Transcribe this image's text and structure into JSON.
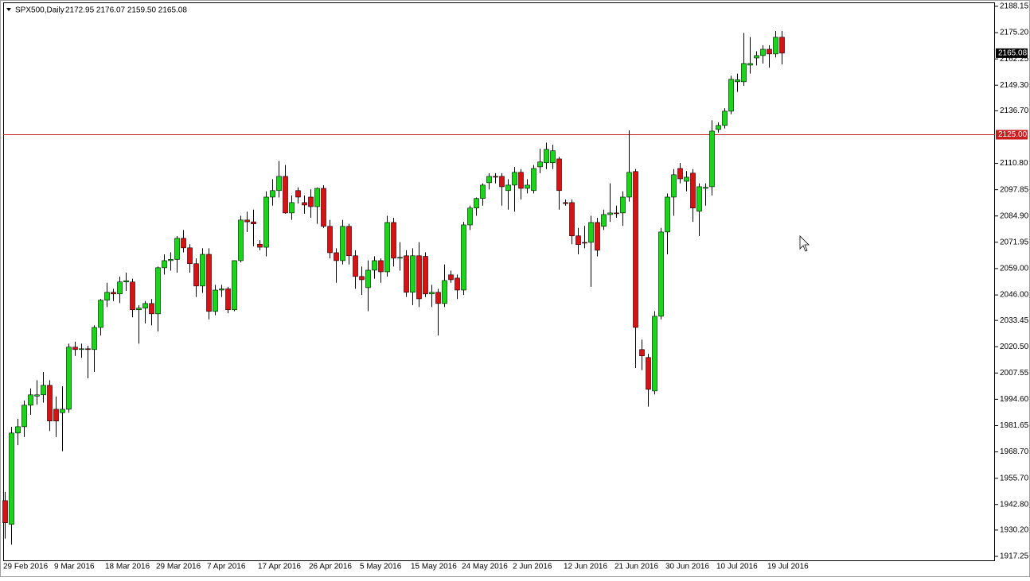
{
  "chart_data": {
    "type": "candlestick",
    "title": "SPX500,Daily",
    "ohlc_text": "2172.95 2176.07 2159.50 2165.08",
    "categories": [
      "29 Feb 2016",
      null,
      null,
      null,
      null,
      null,
      null,
      null,
      "9 Mar 2016",
      null,
      null,
      null,
      null,
      null,
      null,
      null,
      "18 Mar 2016",
      null,
      null,
      null,
      null,
      null,
      null,
      null,
      "29 Mar 2016",
      null,
      null,
      null,
      null,
      null,
      null,
      null,
      "7 Apr 2016",
      null,
      null,
      null,
      null,
      null,
      null,
      null,
      "17 Apr 2016",
      null,
      null,
      null,
      null,
      null,
      null,
      null,
      "26 Apr 2016",
      null,
      null,
      null,
      null,
      null,
      null,
      null,
      "5 May 2016",
      null,
      null,
      null,
      null,
      null,
      null,
      null,
      "15 May 2016",
      null,
      null,
      null,
      null,
      null,
      null,
      null,
      "24 May 2016",
      null,
      null,
      null,
      null,
      null,
      null,
      null,
      "2 Jun 2016",
      null,
      null,
      null,
      null,
      null,
      null,
      null,
      "12 Jun 2016",
      null,
      null,
      null,
      null,
      null,
      null,
      null,
      "21 Jun 2016",
      null,
      null,
      null,
      null,
      null,
      null,
      null,
      "30 Jun 2016",
      null,
      null,
      null,
      null,
      null,
      null,
      null,
      "10 Jul 2016",
      null,
      null,
      null,
      null,
      null,
      null,
      null,
      "19 Jul 2016",
      null,
      null
    ],
    "open": [
      1944.7,
      1933.0,
      1978.0,
      1981.1,
      1991.7,
      1996.2,
      1996.8,
      2001.5,
      1989.7,
      1988.0,
      1989.7,
      2020.3,
      2019.1,
      2019.5,
      2019.1,
      2030.0,
      2043.4,
      2047.3,
      2046.5,
      2052.4,
      2052.4,
      2038.7,
      2039.5,
      2041.8,
      2036.7,
      2059.4,
      2062.9,
      2063.5,
      2073.9,
      2069.2,
      2061.4,
      2050.4,
      2066.0,
      2037.9,
      2048.4,
      2049.0,
      2038.7,
      2062.9,
      2082.9,
      2082.0,
      2071.0,
      2069.5,
      2094.2,
      2097.4,
      2104.4,
      2086.4,
      2097.4,
      2091.5,
      2094.2,
      2089.5,
      2098.5,
      2079.8,
      2066.8,
      2062.9,
      2079.8,
      2065.3,
      2055.1,
      2049.6,
      2058.2,
      2062.9,
      2057.4,
      2081.7,
      2064.1,
      2065.3,
      2047.3,
      2065.3,
      2065.0,
      2046.5,
      2047.3,
      2041.8,
      2055.9,
      2054.3,
      2048.4,
      2080.5,
      2088.8,
      2093.5,
      2101.3,
      2104.4,
      2104.4,
      2097.4,
      2100.1,
      2106.4,
      2098.5,
      2097.4,
      2109.1,
      2111.1,
      2111.1,
      2113.0,
      2091.5,
      2091.5,
      2075.1,
      2071.9,
      2071.9,
      2081.7,
      2079.8,
      2085.6,
      2086.4,
      2086.4,
      2094.2,
      2106.8,
      2019.1,
      2015.2,
      1998.7,
      2035.5,
      2077.0,
      2094.2,
      2108.3,
      2102.0,
      2106.0,
      2087.2,
      2098.5,
      2099.3,
      2127.5,
      2129.5,
      2136.5,
      2151.0,
      2151.0,
      2159.2,
      2162.7,
      2163.9,
      2167.0,
      2164.7,
      2172.95
    ],
    "high": [
      1949.0,
      1981.0,
      1985.0,
      1994.0,
      2000.0,
      2004.0,
      2008.0,
      2004.0,
      1996.0,
      2001.0,
      2022.0,
      2023.0,
      2022.0,
      2021.0,
      2031.0,
      2044.0,
      2052.0,
      2049.0,
      2055.0,
      2057.0,
      2054.0,
      2041.0,
      2043.0,
      2044.0,
      2060.0,
      2066.0,
      2067.0,
      2075.0,
      2078.0,
      2071.0,
      2064.0,
      2069.0,
      2069.0,
      2051.0,
      2051.0,
      2050.0,
      2063.0,
      2085.0,
      2087.0,
      2088.0,
      2073.0,
      2097.0,
      2103.0,
      2112.0,
      2110.0,
      2095.0,
      2099.0,
      2095.0,
      2098.0,
      2099.0,
      2100.0,
      2083.0,
      2069.0,
      2083.0,
      2081.0,
      2068.0,
      2060.0,
      2063.0,
      2065.0,
      2064.0,
      2085.0,
      2084.0,
      2072.0,
      2068.0,
      2069.0,
      2072.0,
      2067.0,
      2051.0,
      2049.0,
      2061.0,
      2058.0,
      2056.0,
      2082.0,
      2090.0,
      2094.0,
      2101.0,
      2106.0,
      2106.0,
      2106.0,
      2103.0,
      2109.0,
      2108.0,
      2103.0,
      2110.0,
      2118.0,
      2121.0,
      2120.0,
      2114.0,
      2093.0,
      2093.0,
      2079.0,
      2080.0,
      2085.0,
      2084.0,
      2088.0,
      2101.0,
      2090.0,
      2097.0,
      2127.0,
      2108.0,
      2024.0,
      2017.0,
      2038.0,
      2079.0,
      2096.0,
      2108.0,
      2111.0,
      2107.0,
      2108.0,
      2101.0,
      2101.0,
      2132.0,
      2131.0,
      2138.0,
      2154.0,
      2155.0,
      2175.0,
      2173.0,
      2166.0,
      2169.0,
      2169.0,
      2176.0,
      2176.07
    ],
    "low": [
      1926.0,
      1923.0,
      1972.0,
      1976.0,
      1987.0,
      1992.0,
      1993.0,
      1979.0,
      1976.0,
      1969.0,
      1988.0,
      2016.0,
      2015.0,
      2005.0,
      2008.0,
      2026.0,
      2040.0,
      2043.0,
      2042.0,
      2048.0,
      2035.0,
      2022.0,
      2032.0,
      2031.0,
      2028.0,
      2056.0,
      2058.0,
      2057.0,
      2067.0,
      2057.0,
      2045.0,
      2047.0,
      2034.0,
      2036.0,
      2045.0,
      2037.0,
      2038.0,
      2062.0,
      2077.0,
      2070.0,
      2068.0,
      2065.0,
      2090.0,
      2094.0,
      2086.0,
      2083.0,
      2091.0,
      2086.0,
      2084.0,
      2081.0,
      2079.0,
      2064.0,
      2052.0,
      2061.0,
      2061.0,
      2049.0,
      2046.0,
      2038.0,
      2054.0,
      2052.0,
      2055.0,
      2060.0,
      2058.0,
      2045.0,
      2041.0,
      2040.0,
      2045.0,
      2040.0,
      2026.0,
      2040.0,
      2052.0,
      2044.0,
      2046.0,
      2078.0,
      2085.0,
      2090.0,
      2098.0,
      2101.0,
      2090.0,
      2088.0,
      2087.0,
      2093.0,
      2096.0,
      2096.0,
      2106.0,
      2108.0,
      2108.0,
      2088.0,
      2090.0,
      2071.0,
      2066.0,
      2069.0,
      2050.0,
      2065.0,
      2078.0,
      2082.0,
      2084.0,
      2080.0,
      2092.0,
      2010.0,
      2009.0,
      1991.0,
      1997.0,
      2034.0,
      2066.0,
      2085.0,
      2101.0,
      2097.0,
      2082.0,
      2075.0,
      2090.0,
      2095.0,
      2126.0,
      2128.0,
      2135.0,
      2146.0,
      2149.0,
      2155.0,
      2159.0,
      2160.0,
      2158.0,
      2163.0,
      2159.5
    ],
    "close": [
      1933.8,
      1978.0,
      1981.1,
      1991.7,
      1996.8,
      1996.8,
      2001.5,
      1983.9,
      1983.9,
      1989.7,
      2020.3,
      2019.1,
      2019.5,
      2019.1,
      2030.0,
      2043.4,
      2047.3,
      2046.5,
      2052.4,
      2053.0,
      2038.7,
      2039.5,
      2041.8,
      2036.7,
      2059.4,
      2062.9,
      2063.5,
      2073.9,
      2069.2,
      2061.4,
      2050.4,
      2066.0,
      2037.9,
      2048.4,
      2049.0,
      2038.7,
      2062.9,
      2082.9,
      2082.0,
      2081.0,
      2069.5,
      2094.2,
      2097.4,
      2104.4,
      2086.4,
      2091.5,
      2094.2,
      2090.3,
      2089.5,
      2098.5,
      2079.8,
      2066.8,
      2062.9,
      2079.8,
      2065.3,
      2055.1,
      2053.5,
      2058.2,
      2062.9,
      2057.4,
      2081.7,
      2064.1,
      2064.5,
      2047.3,
      2065.3,
      2044.1,
      2046.5,
      2047.3,
      2041.8,
      2053.1,
      2053.5,
      2048.4,
      2080.5,
      2088.8,
      2093.5,
      2100.1,
      2104.4,
      2104.0,
      2099.3,
      2100.1,
      2106.4,
      2098.5,
      2100.1,
      2108.3,
      2111.5,
      2117.7,
      2117.0,
      2097.4,
      2091.0,
      2075.1,
      2070.8,
      2071.5,
      2081.7,
      2068.0,
      2085.6,
      2086.4,
      2086.0,
      2094.2,
      2106.4,
      2030.0,
      2016.0,
      1999.5,
      2035.5,
      2077.0,
      2094.2,
      2105.2,
      2103.2,
      2104.0,
      2088.8,
      2099.3,
      2099.0,
      2126.7,
      2129.5,
      2136.5,
      2152.2,
      2152.0,
      2160.0,
      2160.0,
      2163.9,
      2167.0,
      2164.7,
      2172.9,
      2165.08
    ],
    "up_color": "#1ed31e",
    "down_color": "#d21414",
    "wick_color": "#000000",
    "ylim": [
      1914.9,
      2189.7
    ],
    "yticks": [
      2188.15,
      {
        "value": 2175.2,
        "label": "2175.20"
      },
      2162.25,
      {
        "value": 2149.3,
        "label": "2149.30"
      },
      {
        "value": 2136.7,
        "label": "2136.70"
      },
      {
        "value": 2110.8,
        "label": "2110.80"
      },
      2097.85,
      {
        "value": 2084.9,
        "label": "2084.90"
      },
      2071.95,
      {
        "value": 2059,
        "label": "2059.00"
      },
      {
        "value": 2046,
        "label": "2046.00"
      },
      2033.45,
      {
        "value": 2020.5,
        "label": "2020.50"
      },
      2007.55,
      {
        "value": 1994.6,
        "label": "1994.60"
      },
      1981.65,
      {
        "value": 1968.7,
        "label": "1968.70"
      },
      {
        "value": 1955.7,
        "label": "1955.70"
      },
      {
        "value": 1942.8,
        "label": "1942.80"
      },
      {
        "value": 1930.2,
        "label": "1930.20"
      },
      1917.25
    ],
    "price_line": {
      "value": 2125,
      "label": "2125.00",
      "color": "#c81e1e"
    },
    "last_price": 2165.08
  }
}
